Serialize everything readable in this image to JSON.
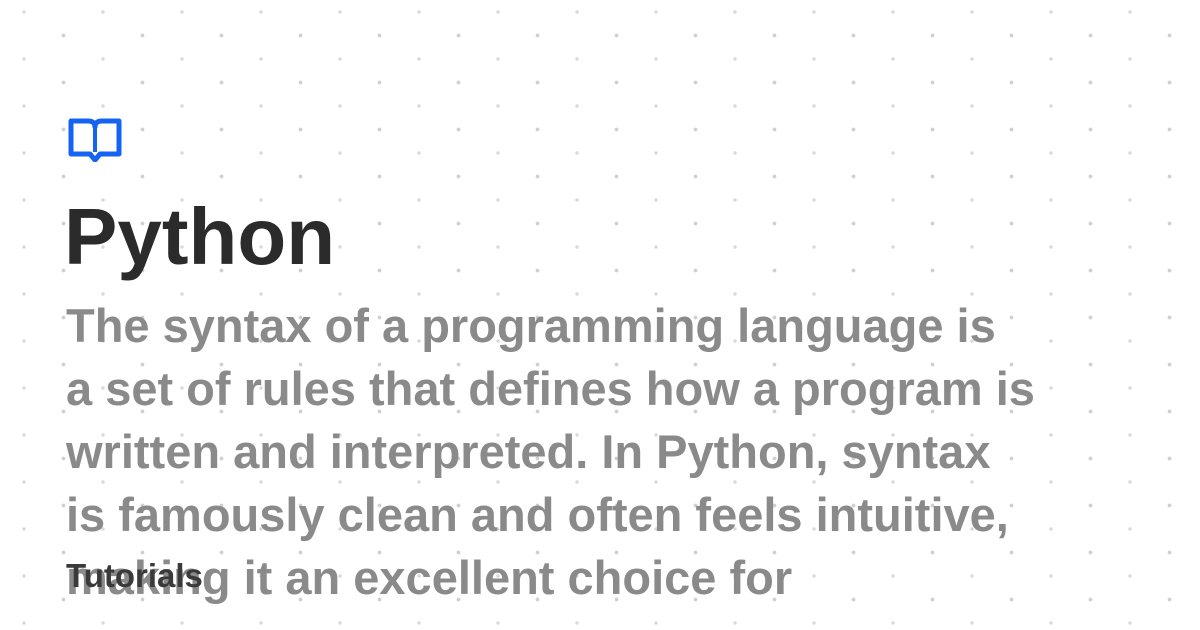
{
  "title": "Python",
  "description_lines": [
    "The syntax of a programming language is",
    "a set of rules that defines how a program is",
    "written and interpreted. In Python, syntax",
    "is famously clean and often feels intuitive,",
    "making it an excellent choice for"
  ],
  "tag": "Tutorials"
}
